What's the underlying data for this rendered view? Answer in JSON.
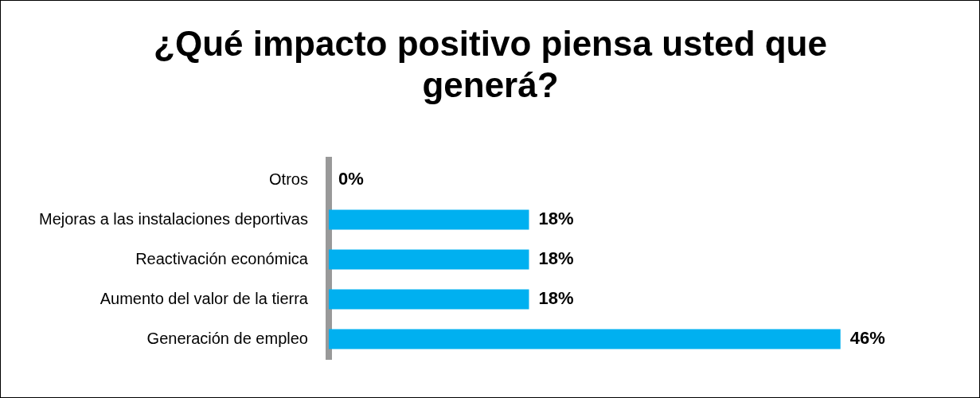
{
  "chart_data": {
    "type": "bar",
    "orientation": "horizontal",
    "title": "¿Qué impacto positivo piensa usted que generá?",
    "categories": [
      "Otros",
      "Mejoras a las instalaciones deportivas",
      "Reactivación económica",
      "Aumento del valor de la tierra",
      "Generación de empleo"
    ],
    "values": [
      0,
      18,
      18,
      18,
      46
    ],
    "colors": [
      "#1f5a78",
      "#00b0f0",
      "#00b0f0",
      "#00b0f0",
      "#00b0f0"
    ],
    "value_labels": [
      "0%",
      "18%",
      "18%",
      "18%",
      "46%"
    ],
    "legend": false
  }
}
